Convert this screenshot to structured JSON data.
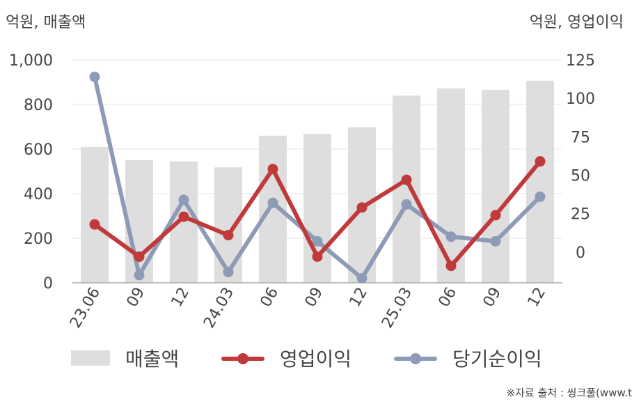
{
  "units": {
    "left": "억원, 매출액",
    "right": "억원, 영업이익"
  },
  "source": "※자료 출처 : 씽크풀(www.t",
  "colors": {
    "revenue": "#dedede",
    "operating_profit": "#c0393b",
    "net_income": "#8e9bb6",
    "grid": "#e6e6e6",
    "axis": "#aaaaaa"
  },
  "chart_data": {
    "type": "bar",
    "categories": [
      "23.06",
      "09",
      "12",
      "24.03",
      "06",
      "09",
      "12",
      "25.03",
      "06",
      "09",
      "12"
    ],
    "y_left": {
      "ticks": [
        "0",
        "200",
        "400",
        "600",
        "800",
        "1,000"
      ],
      "ylim": [
        0,
        1000
      ]
    },
    "y_right": {
      "ticks": [
        "0",
        "25",
        "50",
        "75",
        "100",
        "125"
      ],
      "ylim": [
        -20,
        125
      ]
    },
    "grid": true,
    "legend_position": "bottom",
    "series": [
      {
        "name": "매출액",
        "type": "bar",
        "axis": "left",
        "values": [
          610,
          550,
          545,
          518,
          660,
          668,
          698,
          840,
          872,
          866,
          907
        ]
      },
      {
        "name": "영업이익",
        "type": "line",
        "axis": "right",
        "values": [
          18,
          -3,
          23,
          11,
          54,
          -3,
          29,
          47,
          -9,
          24,
          59
        ]
      },
      {
        "name": "당기순이익",
        "type": "line",
        "axis": "right",
        "values": [
          114,
          -15,
          34,
          -13,
          32,
          7,
          -17,
          31,
          10,
          7,
          36
        ]
      }
    ]
  }
}
